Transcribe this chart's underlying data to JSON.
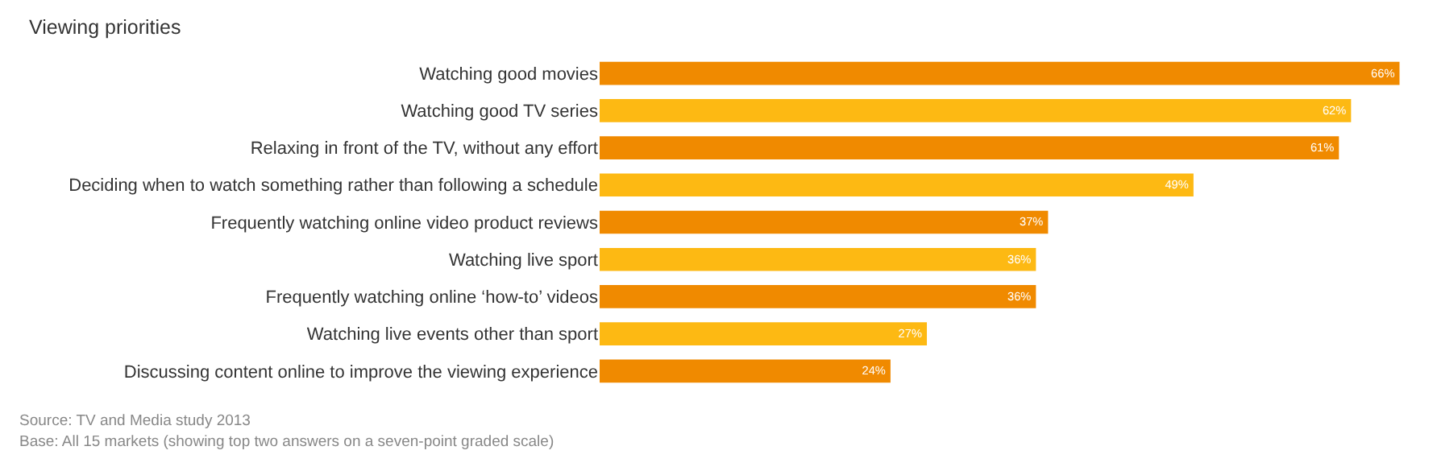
{
  "chart_data": {
    "type": "bar",
    "orientation": "horizontal",
    "title": "Viewing priorities",
    "categories": [
      "Watching good movies",
      "Watching good TV series",
      "Relaxing in front of the TV, without any effort",
      "Deciding when to watch something rather than following a schedule",
      "Frequently watching online video product reviews",
      "Watching live sport",
      "Frequently watching online ‘how-to’ videos",
      "Watching live events other than sport",
      "Discussing content online to improve the viewing experience"
    ],
    "values": [
      66,
      62,
      61,
      49,
      37,
      36,
      36,
      27,
      24
    ],
    "colors": [
      "#f08a00",
      "#fdb913",
      "#f08a00",
      "#fdb913",
      "#f08a00",
      "#fdb913",
      "#f08a00",
      "#fdb913",
      "#f08a00"
    ],
    "value_labels": [
      "66%",
      "62%",
      "61%",
      "49%",
      "37%",
      "36%",
      "36%",
      "27%",
      "24%"
    ],
    "xlim": [
      0,
      66.5
    ],
    "tick_labels": "y",
    "grid": false,
    "legend": false,
    "annotations": [
      "Source: TV and Media study 2013",
      "Base: All 15 markets (showing top two answers on a seven-point graded scale)"
    ]
  }
}
